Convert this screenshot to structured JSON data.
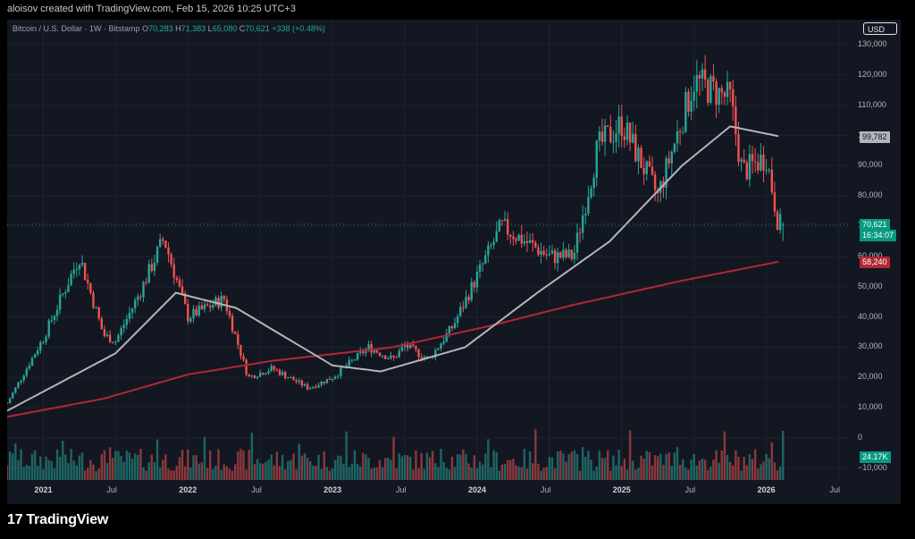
{
  "credit": "aloisov created with TradingView.com, Feb 15, 2026 10:25 UTC+3",
  "legend": {
    "symbol": "Bitcoin / U.S. Dollar · 1W · Bitstamp",
    "o_label": "O",
    "o_value": "70,283",
    "h_label": "H",
    "h_value": "71,383",
    "l_label": "L",
    "l_value": "65,080",
    "c_label": "C",
    "c_value": "70,621",
    "change": "+338 (+0.48%)"
  },
  "currency_button": "USD",
  "y_axis_labels": [
    "130,000",
    "120,000",
    "110,000",
    "100,000",
    "90,000",
    "80,000",
    "70,000",
    "60,000",
    "50,000",
    "40,000",
    "30,000",
    "20,000",
    "10,000",
    "0",
    "−10,000"
  ],
  "x_axis_labels": [
    {
      "label": "2021",
      "bold": true
    },
    {
      "label": "Jul",
      "bold": false
    },
    {
      "label": "2022",
      "bold": true
    },
    {
      "label": "Jul",
      "bold": false
    },
    {
      "label": "2023",
      "bold": true
    },
    {
      "label": "Jul",
      "bold": false
    },
    {
      "label": "2024",
      "bold": true
    },
    {
      "label": "Jul",
      "bold": false
    },
    {
      "label": "2025",
      "bold": true
    },
    {
      "label": "Jul",
      "bold": false
    },
    {
      "label": "2026",
      "bold": true
    },
    {
      "label": "Jul",
      "bold": false
    }
  ],
  "badges": {
    "ma50": "99,782",
    "price": "70,621",
    "countdown": "16:34:07",
    "ma200": "58,240",
    "volume": "24.17K"
  },
  "colors": {
    "up": "#26a69a",
    "down": "#ef5350",
    "ma50": "#b2b5be",
    "ma200": "#b22833",
    "background": "#131722"
  },
  "footer": {
    "brand": "TradingView",
    "logo_mark": "17"
  },
  "chart_data": {
    "type": "candlestick",
    "title": "Bitcoin / U.S. Dollar · 1W · Bitstamp",
    "ylim": [
      -10000,
      130000
    ],
    "x_range": [
      "2020-10",
      "2026-08"
    ],
    "last": {
      "open": 70283,
      "high": 71383,
      "low": 65080,
      "close": 70621
    },
    "anchors": [
      {
        "date": "2020-10",
        "price": 11500
      },
      {
        "date": "2021-01",
        "price": 33000
      },
      {
        "date": "2021-04",
        "price": 60000
      },
      {
        "date": "2021-06",
        "price": 34000
      },
      {
        "date": "2021-07",
        "price": 32000
      },
      {
        "date": "2021-09",
        "price": 48000
      },
      {
        "date": "2021-11",
        "price": 66000
      },
      {
        "date": "2022-01",
        "price": 40000
      },
      {
        "date": "2022-04",
        "price": 46000
      },
      {
        "date": "2022-06",
        "price": 20000
      },
      {
        "date": "2022-08",
        "price": 23000
      },
      {
        "date": "2022-11",
        "price": 16500
      },
      {
        "date": "2023-01",
        "price": 20000
      },
      {
        "date": "2023-04",
        "price": 30000
      },
      {
        "date": "2023-06",
        "price": 26000
      },
      {
        "date": "2023-07",
        "price": 30500
      },
      {
        "date": "2023-09",
        "price": 26000
      },
      {
        "date": "2023-11",
        "price": 37000
      },
      {
        "date": "2024-03",
        "price": 70000
      },
      {
        "date": "2024-07",
        "price": 60000
      },
      {
        "date": "2024-09",
        "price": 60000
      },
      {
        "date": "2024-11",
        "price": 96000
      },
      {
        "date": "2025-01",
        "price": 104000
      },
      {
        "date": "2025-04",
        "price": 80000
      },
      {
        "date": "2025-07",
        "price": 118000
      },
      {
        "date": "2025-10",
        "price": 112000
      },
      {
        "date": "2025-11",
        "price": 88000
      },
      {
        "date": "2026-01",
        "price": 93000
      },
      {
        "date": "2026-02",
        "price": 70621
      }
    ],
    "ma50_anchors": [
      {
        "date": "2020-10",
        "price": 9000
      },
      {
        "date": "2021-07",
        "price": 28000
      },
      {
        "date": "2021-12",
        "price": 48000
      },
      {
        "date": "2022-05",
        "price": 43000
      },
      {
        "date": "2023-01",
        "price": 24000
      },
      {
        "date": "2023-05",
        "price": 22000
      },
      {
        "date": "2023-12",
        "price": 30000
      },
      {
        "date": "2024-06",
        "price": 48000
      },
      {
        "date": "2024-12",
        "price": 65000
      },
      {
        "date": "2025-06",
        "price": 90000
      },
      {
        "date": "2025-10",
        "price": 103000
      },
      {
        "date": "2026-02",
        "price": 99782
      }
    ],
    "ma200_anchors": [
      {
        "date": "2020-10",
        "price": 7000
      },
      {
        "date": "2021-06",
        "price": 13000
      },
      {
        "date": "2022-01",
        "price": 21000
      },
      {
        "date": "2022-08",
        "price": 25500
      },
      {
        "date": "2023-06",
        "price": 30000
      },
      {
        "date": "2024-02",
        "price": 37000
      },
      {
        "date": "2024-09",
        "price": 44000
      },
      {
        "date": "2025-06",
        "price": 52000
      },
      {
        "date": "2026-02",
        "price": 58240
      }
    ]
  }
}
